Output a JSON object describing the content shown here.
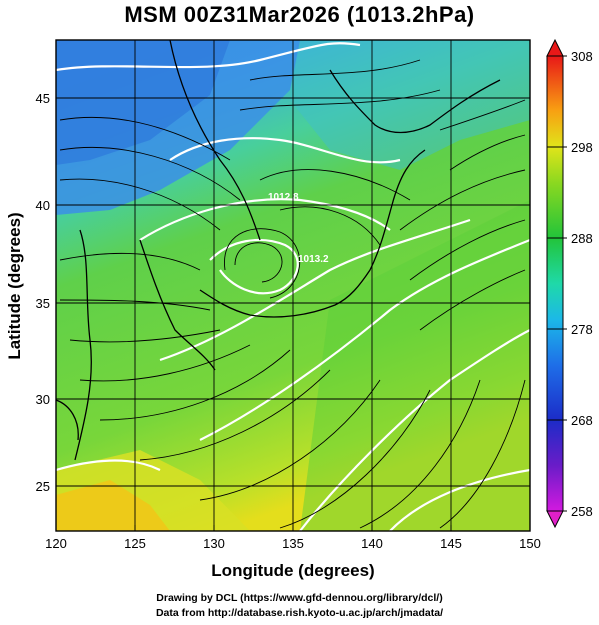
{
  "title": "MSM 00Z31Mar2026 (1013.2hPa)",
  "x_axis": {
    "label": "Longitude (degrees)",
    "ticks": [
      "120",
      "125",
      "130",
      "135",
      "140",
      "145",
      "150"
    ],
    "range": [
      120,
      150
    ]
  },
  "y_axis": {
    "label": "Latitude (degrees)",
    "ticks": [
      "25",
      "30",
      "35",
      "40",
      "45"
    ],
    "range": [
      22.4,
      47.6
    ]
  },
  "colorbar": {
    "ticks": [
      "258",
      "268",
      "278",
      "288",
      "298",
      "308"
    ],
    "min": 258,
    "max": 308
  },
  "contour_labels": [
    {
      "text": "1012.8",
      "lon": 134.5,
      "lat": 40.1
    },
    {
      "text": "1013.2",
      "lon": 135.5,
      "lat": 37.0
    }
  ],
  "credits": {
    "line1": "Drawing by DCL (https://www.gfd-dennou.org/library/dcl/)",
    "line2": "Data from http://database.rish.kyoto-u.ac.jp/arch/jmadata/"
  },
  "colors": {
    "cold": "#2f7fe0",
    "cool": "#3fc6c0",
    "mild": "#6fd040",
    "warm": "#d8e41a",
    "hot": "#f0c010",
    "contour": "#ffffff",
    "streamline": "#000000"
  }
}
